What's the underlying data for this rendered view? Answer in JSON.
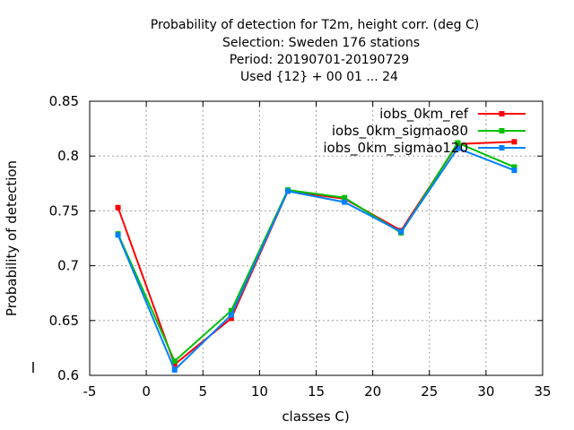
{
  "chart_data": {
    "type": "line",
    "title_lines": [
      "Probability of detection  for T2m, height corr. (deg C)",
      "Selection: Sweden    176 stations",
      "Period: 20190701-20190729",
      "Used {12} + 00 01 ... 24"
    ],
    "xlabel": "classes C)",
    "ylabel": "Probability of detection",
    "xlim": [
      -5,
      35
    ],
    "ylim": [
      0.6,
      0.85
    ],
    "xticks": [
      -5,
      0,
      5,
      10,
      15,
      20,
      25,
      30,
      35
    ],
    "xtick_labels": [
      "-5",
      "0",
      "5",
      "10",
      "15",
      "20",
      "25",
      "30",
      "35"
    ],
    "yticks": [
      0.6,
      0.65,
      0.7,
      0.75,
      0.8,
      0.85
    ],
    "ytick_labels": [
      "0.6",
      "0.65",
      "0.7",
      "0.75",
      "0.8",
      "0.85"
    ],
    "grid": true,
    "legend_position": "top-right",
    "series": [
      {
        "name": "iobs_0km_ref",
        "color": "#ff0000",
        "x": [
          -2.5,
          2.5,
          7.5,
          12.5,
          17.5,
          22.5,
          27.5,
          32.5
        ],
        "y": [
          0.753,
          0.61,
          0.652,
          0.768,
          0.761,
          0.732,
          0.811,
          0.813
        ]
      },
      {
        "name": "iobs_0km_sigmao80",
        "color": "#00c000",
        "x": [
          -2.5,
          2.5,
          7.5,
          12.5,
          17.5,
          22.5,
          27.5,
          32.5
        ],
        "y": [
          0.729,
          0.613,
          0.659,
          0.769,
          0.762,
          0.73,
          0.812,
          0.79
        ]
      },
      {
        "name": "iobs_0km_sigmao120",
        "color": "#0080ff",
        "x": [
          -2.5,
          2.5,
          7.5,
          12.5,
          17.5,
          22.5,
          27.5,
          32.5
        ],
        "y": [
          0.728,
          0.605,
          0.655,
          0.768,
          0.758,
          0.731,
          0.807,
          0.787
        ]
      }
    ]
  }
}
